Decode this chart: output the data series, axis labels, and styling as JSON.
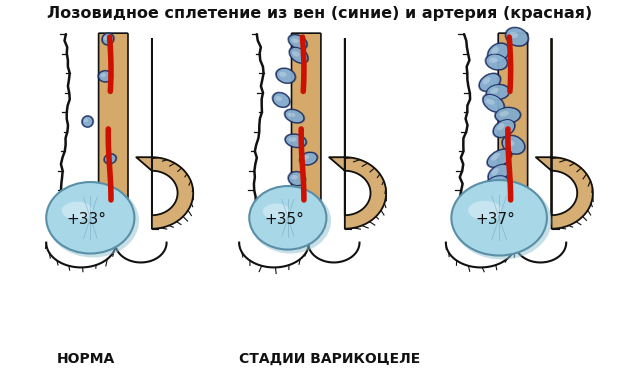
{
  "title": "Лозовидное сплетение из вен (синие) и артерия (красная)",
  "label_left": "НОРМА",
  "label_center": "СТАДИИ ВАРИКОЦЕЛЕ",
  "temp_left": "+33°",
  "temp_center": "+35°",
  "temp_right": "+37°",
  "bg_color": "#ffffff",
  "title_fontsize": 11.5,
  "label_fontsize": 10,
  "temp_fontsize": 11,
  "fig_width": 6.4,
  "fig_height": 3.8,
  "dpi": 100,
  "vein_color": "#8ab4d4",
  "vein_edge": "#1a2a5e",
  "artery_color": "#cc1100",
  "skin_color": "#d4a96a",
  "skin_dark": "#b8884a",
  "testicle_color": "#a8d8e8",
  "testicle_edge": "#5a8fa8",
  "black": "#111111",
  "dark_gray": "#222222"
}
